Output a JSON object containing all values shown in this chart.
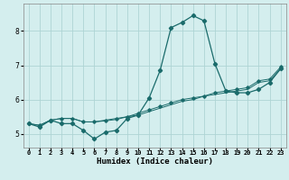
{
  "title": "",
  "xlabel": "Humidex (Indice chaleur)",
  "ylabel": "",
  "background_color": "#d4eeee",
  "grid_color": "#aed4d4",
  "line_color": "#1a6b6b",
  "xlim": [
    -0.5,
    23.5
  ],
  "ylim": [
    4.6,
    8.8
  ],
  "yticks": [
    5,
    6,
    7,
    8
  ],
  "xticks": [
    0,
    1,
    2,
    3,
    4,
    5,
    6,
    7,
    8,
    9,
    10,
    11,
    12,
    13,
    14,
    15,
    16,
    17,
    18,
    19,
    20,
    21,
    22,
    23
  ],
  "series1_x": [
    0,
    1,
    2,
    3,
    4,
    5,
    6,
    7,
    8,
    9,
    10,
    11,
    12,
    13,
    14,
    15,
    16,
    17,
    18,
    19,
    20,
    21,
    22,
    23
  ],
  "series1_y": [
    5.3,
    5.2,
    5.4,
    5.3,
    5.3,
    5.1,
    4.85,
    5.05,
    5.1,
    5.45,
    5.55,
    6.05,
    6.85,
    8.1,
    8.25,
    8.45,
    8.3,
    7.05,
    6.25,
    6.2,
    6.2,
    6.3,
    6.5,
    6.9
  ],
  "series2_x": [
    0,
    1,
    2,
    3,
    4,
    5,
    6,
    7,
    8,
    9,
    10,
    11,
    12,
    13,
    14,
    15,
    16,
    17,
    18,
    19,
    20,
    21,
    22,
    23
  ],
  "series2_y": [
    5.3,
    5.25,
    5.4,
    5.45,
    5.45,
    5.35,
    5.35,
    5.4,
    5.45,
    5.5,
    5.6,
    5.7,
    5.8,
    5.9,
    6.0,
    6.05,
    6.1,
    6.2,
    6.25,
    6.3,
    6.35,
    6.55,
    6.6,
    6.95
  ],
  "series3_x": [
    0,
    1,
    2,
    3,
    4,
    5,
    6,
    7,
    8,
    9,
    10,
    11,
    12,
    13,
    14,
    15,
    16,
    17,
    18,
    19,
    20,
    21,
    22,
    23
  ],
  "series3_y": [
    5.3,
    5.25,
    5.4,
    5.45,
    5.45,
    5.35,
    5.35,
    5.38,
    5.42,
    5.5,
    5.55,
    5.65,
    5.75,
    5.85,
    5.95,
    6.0,
    6.1,
    6.15,
    6.2,
    6.25,
    6.3,
    6.5,
    6.55,
    6.9
  ],
  "xticklabels": [
    "0",
    "1",
    "2",
    "3",
    "4",
    "5",
    "6",
    "7",
    "8",
    "9",
    "10",
    "11",
    "12",
    "13",
    "14",
    "15",
    "16",
    "17",
    "18",
    "19",
    "20",
    "21",
    "22",
    "23"
  ],
  "xlabel_fontsize": 6.5,
  "ylabel_fontsize": 7,
  "tick_fontsize": 5.5,
  "tick_fontsize_x": 5.0
}
